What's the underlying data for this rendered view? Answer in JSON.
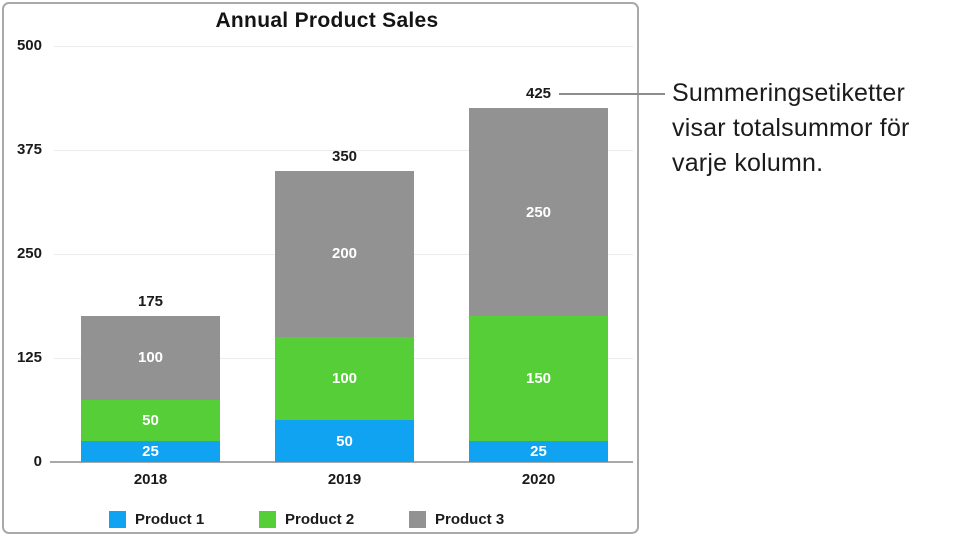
{
  "chart_data": {
    "type": "bar",
    "stacked": true,
    "title": "Annual Product Sales",
    "categories": [
      "2018",
      "2019",
      "2020"
    ],
    "series": [
      {
        "name": "Product 1",
        "color": "#0fa3f2",
        "values": [
          25,
          50,
          25
        ]
      },
      {
        "name": "Product 2",
        "color": "#55ce38",
        "values": [
          50,
          100,
          150
        ]
      },
      {
        "name": "Product 3",
        "color": "#929292",
        "values": [
          100,
          200,
          250
        ]
      }
    ],
    "totals": [
      175,
      350,
      425
    ],
    "y_ticks": [
      0,
      125,
      250,
      375,
      500
    ],
    "ylim": [
      0,
      500
    ],
    "grid": true,
    "legend_position": "bottom",
    "value_labels": "inside-white",
    "total_labels": "above-bars"
  },
  "callout": {
    "text_lines": {
      "0": "Summeringsetiketter",
      "1": "visar totalsummor för",
      "2": "varje kolumn."
    },
    "attached_to_label": "425",
    "line_color": "#8c8c8c"
  },
  "colors": {
    "frame_border": "#a9a9a9",
    "gridline": "#ececec",
    "axis_line": "#a9a9a9",
    "text": "#1a1a1a",
    "segment_text": "#ffffff",
    "background": "#ffffff"
  }
}
